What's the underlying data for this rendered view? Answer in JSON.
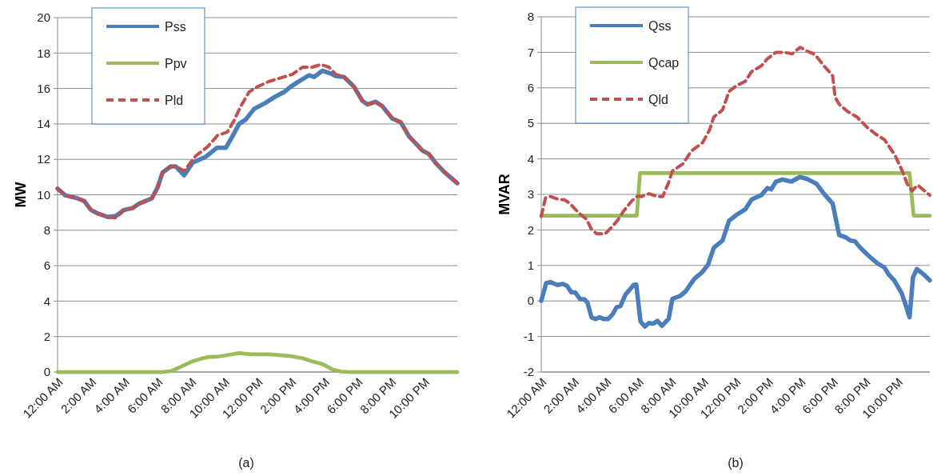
{
  "chart_data": [
    {
      "type": "line",
      "title": "(a)",
      "ylabel": "MW",
      "xlim": [
        0,
        24
      ],
      "xticks": [
        {
          "value": 0,
          "label": "12:00 AM"
        },
        {
          "value": 2,
          "label": "2:00 AM"
        },
        {
          "value": 4,
          "label": "4:00 AM"
        },
        {
          "value": 6,
          "label": "6:00 AM"
        },
        {
          "value": 8,
          "label": "8:00 AM"
        },
        {
          "value": 10,
          "label": "10:00 AM"
        },
        {
          "value": 12,
          "label": "12:00 PM"
        },
        {
          "value": 14,
          "label": "2:00 PM"
        },
        {
          "value": 16,
          "label": "4:00 PM"
        },
        {
          "value": 18,
          "label": "6:00 PM"
        },
        {
          "value": 20,
          "label": "8:00 PM"
        },
        {
          "value": 22,
          "label": "10:00 PM"
        }
      ],
      "ylim": [
        0,
        20
      ],
      "yticks": [
        0,
        2,
        4,
        6,
        8,
        10,
        12,
        14,
        16,
        18,
        20
      ],
      "grid": "y",
      "legend": "top left",
      "marker": "none",
      "series": [
        {
          "name": "Pss",
          "color": "#4a7ebb",
          "line_style": "solid",
          "x": [
            0,
            0.46,
            1.2,
            1.6,
            2.0,
            2.4,
            3.0,
            3.5,
            4.0,
            4.5,
            4.9,
            5.66,
            6.0,
            6.3,
            6.8,
            7.1,
            7.6,
            8.1,
            8.9,
            9.56,
            10.1,
            10.5,
            10.9,
            11.3,
            11.8,
            12.5,
            13.0,
            13.6,
            14.0,
            14.4,
            15.1,
            15.4,
            15.9,
            16.4,
            16.7,
            17.2,
            17.8,
            18.3,
            18.6,
            19.1,
            19.5,
            20.1,
            20.6,
            21.1,
            21.6,
            21.9,
            22.3,
            22.7,
            23.2,
            24
          ],
          "values": [
            10.35,
            9.97,
            9.8,
            9.65,
            9.15,
            8.95,
            8.75,
            8.8,
            9.15,
            9.25,
            9.5,
            9.8,
            10.4,
            11.25,
            11.6,
            11.6,
            11.1,
            11.8,
            12.15,
            12.65,
            12.65,
            13.3,
            14.0,
            14.25,
            14.85,
            15.2,
            15.5,
            15.8,
            16.1,
            16.35,
            16.75,
            16.65,
            17.0,
            16.85,
            16.7,
            16.65,
            16.1,
            15.3,
            15.1,
            15.25,
            15.0,
            14.3,
            14.1,
            13.3,
            12.8,
            12.5,
            12.3,
            11.8,
            11.3,
            10.65
          ]
        },
        {
          "name": "Ppv",
          "color": "#9bbb59",
          "line_style": "solid",
          "x": [
            0,
            6.3,
            6.8,
            7.3,
            8.1,
            8.6,
            9.1,
            9.7,
            10.3,
            10.9,
            11.6,
            12.7,
            13.3,
            14.0,
            14.7,
            15.3,
            15.9,
            16.5,
            17.0,
            17.5,
            24
          ],
          "values": [
            0,
            0,
            0.05,
            0.25,
            0.6,
            0.75,
            0.85,
            0.88,
            0.97,
            1.07,
            1.0,
            1.0,
            0.95,
            0.9,
            0.78,
            0.6,
            0.45,
            0.15,
            0.03,
            0,
            0
          ]
        },
        {
          "name": "Pld",
          "color": "#c0504d",
          "line_style": "dashed",
          "x": [
            0,
            0.46,
            1.2,
            1.6,
            2.0,
            2.4,
            3.0,
            3.5,
            4.0,
            4.5,
            4.9,
            5.66,
            6.0,
            6.3,
            6.8,
            7.1,
            7.6,
            8.3,
            9.0,
            9.6,
            10.2,
            10.6,
            11.0,
            11.5,
            12.0,
            12.7,
            13.4,
            14.1,
            14.7,
            15.3,
            15.8,
            16.3,
            16.7,
            17.2,
            17.8,
            18.3,
            18.6,
            19.1,
            19.5,
            20.1,
            20.6,
            21.1,
            21.6,
            21.9,
            22.3,
            22.7,
            23.2,
            24
          ],
          "values": [
            10.35,
            9.97,
            9.8,
            9.65,
            9.15,
            8.95,
            8.75,
            8.7,
            9.15,
            9.25,
            9.5,
            9.8,
            10.4,
            11.25,
            11.6,
            11.6,
            11.35,
            12.2,
            12.7,
            13.35,
            13.55,
            14.2,
            15.0,
            15.8,
            16.1,
            16.4,
            16.6,
            16.8,
            17.2,
            17.2,
            17.35,
            17.2,
            16.8,
            16.65,
            16.1,
            15.3,
            15.1,
            15.25,
            15.0,
            14.3,
            14.1,
            13.3,
            12.8,
            12.5,
            12.3,
            11.8,
            11.3,
            10.65
          ]
        }
      ]
    },
    {
      "type": "line",
      "title": "(b)",
      "ylabel": "MVAR",
      "xlim": [
        0,
        24
      ],
      "xticks": [
        {
          "value": 0,
          "label": "12:00 AM"
        },
        {
          "value": 2,
          "label": "2:00 AM"
        },
        {
          "value": 4,
          "label": "4:00 AM"
        },
        {
          "value": 6,
          "label": "6:00 AM"
        },
        {
          "value": 8,
          "label": "8:00 AM"
        },
        {
          "value": 10,
          "label": "10:00 AM"
        },
        {
          "value": 12,
          "label": "12:00 PM"
        },
        {
          "value": 14,
          "label": "2:00 PM"
        },
        {
          "value": 16,
          "label": "4:00 PM"
        },
        {
          "value": 18,
          "label": "6:00 PM"
        },
        {
          "value": 20,
          "label": "8:00 PM"
        },
        {
          "value": 22,
          "label": "10:00 PM"
        }
      ],
      "ylim": [
        -2,
        8
      ],
      "yticks": [
        -2,
        -1,
        0,
        1,
        2,
        3,
        4,
        5,
        6,
        7,
        8
      ],
      "grid": "y",
      "legend": "top left",
      "marker": "none",
      "series": [
        {
          "name": "Qss",
          "color": "#4a7ebb",
          "line_style": "solid",
          "x": [
            0,
            0.3,
            0.56,
            1.0,
            1.34,
            1.6,
            1.86,
            2.1,
            2.4,
            2.65,
            2.86,
            3.1,
            3.35,
            3.6,
            3.87,
            4.13,
            4.4,
            4.65,
            4.9,
            5.2,
            5.43,
            5.7,
            5.87,
            6.13,
            6.4,
            6.65,
            6.9,
            7.18,
            7.45,
            7.87,
            8.1,
            8.57,
            8.9,
            9.45,
            9.96,
            10.3,
            10.66,
            11.2,
            11.6,
            12.05,
            12.6,
            13.0,
            13.6,
            13.97,
            14.2,
            14.5,
            14.9,
            15.45,
            15.97,
            16.4,
            17.0,
            17.46,
            18.0,
            18.4,
            18.85,
            19.1,
            19.37,
            19.7,
            20.25,
            20.76,
            21.2,
            21.47,
            21.8,
            22.26,
            22.5,
            22.75,
            22.96,
            23.2,
            23.64,
            24
          ],
          "values": [
            0,
            0.5,
            0.53,
            0.45,
            0.48,
            0.42,
            0.24,
            0.24,
            0.05,
            0.05,
            -0.05,
            -0.46,
            -0.51,
            -0.46,
            -0.51,
            -0.51,
            -0.38,
            -0.18,
            -0.14,
            0.18,
            0.3,
            0.45,
            0.46,
            -0.58,
            -0.72,
            -0.62,
            -0.64,
            -0.56,
            -0.7,
            -0.5,
            0.06,
            0.14,
            0.26,
            0.62,
            0.82,
            1.02,
            1.5,
            1.7,
            2.26,
            2.42,
            2.58,
            2.86,
            2.98,
            3.18,
            3.14,
            3.36,
            3.42,
            3.36,
            3.49,
            3.44,
            3.3,
            3.02,
            2.74,
            1.86,
            1.78,
            1.7,
            1.68,
            1.5,
            1.26,
            1.06,
            0.94,
            0.74,
            0.58,
            0.22,
            -0.1,
            -0.46,
            0.66,
            0.9,
            0.74,
            0.58
          ]
        },
        {
          "name": "Qcap",
          "color": "#9bbb59",
          "line_style": "solid",
          "x": [
            0,
            5.9,
            6.1,
            22.75,
            23.0,
            24
          ],
          "values": [
            2.4,
            2.4,
            3.6,
            3.6,
            2.4,
            2.4
          ]
        },
        {
          "name": "Qld",
          "color": "#c0504d",
          "line_style": "dashed",
          "x": [
            0,
            0.26,
            0.56,
            1.08,
            1.43,
            1.78,
            2.1,
            2.47,
            2.8,
            3.1,
            3.43,
            3.95,
            4.4,
            4.7,
            5.1,
            5.6,
            5.96,
            6.2,
            6.65,
            7.2,
            7.5,
            7.87,
            8.1,
            8.75,
            9.27,
            9.97,
            10.4,
            10.66,
            11.2,
            11.6,
            12.05,
            12.6,
            13.0,
            13.6,
            13.97,
            14.5,
            15.0,
            15.5,
            16.0,
            16.4,
            16.9,
            17.46,
            18.0,
            18.15,
            18.4,
            18.9,
            19.5,
            20.1,
            20.65,
            21.2,
            21.5,
            21.85,
            22.3,
            22.6,
            22.9,
            23.25,
            24
          ],
          "values": [
            2.38,
            2.9,
            2.94,
            2.86,
            2.85,
            2.74,
            2.58,
            2.42,
            2.3,
            2.02,
            1.89,
            1.89,
            2.1,
            2.26,
            2.54,
            2.82,
            2.96,
            2.94,
            3.02,
            2.94,
            2.94,
            3.34,
            3.66,
            3.86,
            4.22,
            4.46,
            4.82,
            5.18,
            5.38,
            5.9,
            6.06,
            6.18,
            6.46,
            6.62,
            6.82,
            7.0,
            7.0,
            6.96,
            7.14,
            7.04,
            6.94,
            6.62,
            6.34,
            5.74,
            5.54,
            5.34,
            5.18,
            4.9,
            4.7,
            4.54,
            4.34,
            4.1,
            3.66,
            3.3,
            3.1,
            3.26,
            2.98
          ]
        }
      ]
    }
  ]
}
